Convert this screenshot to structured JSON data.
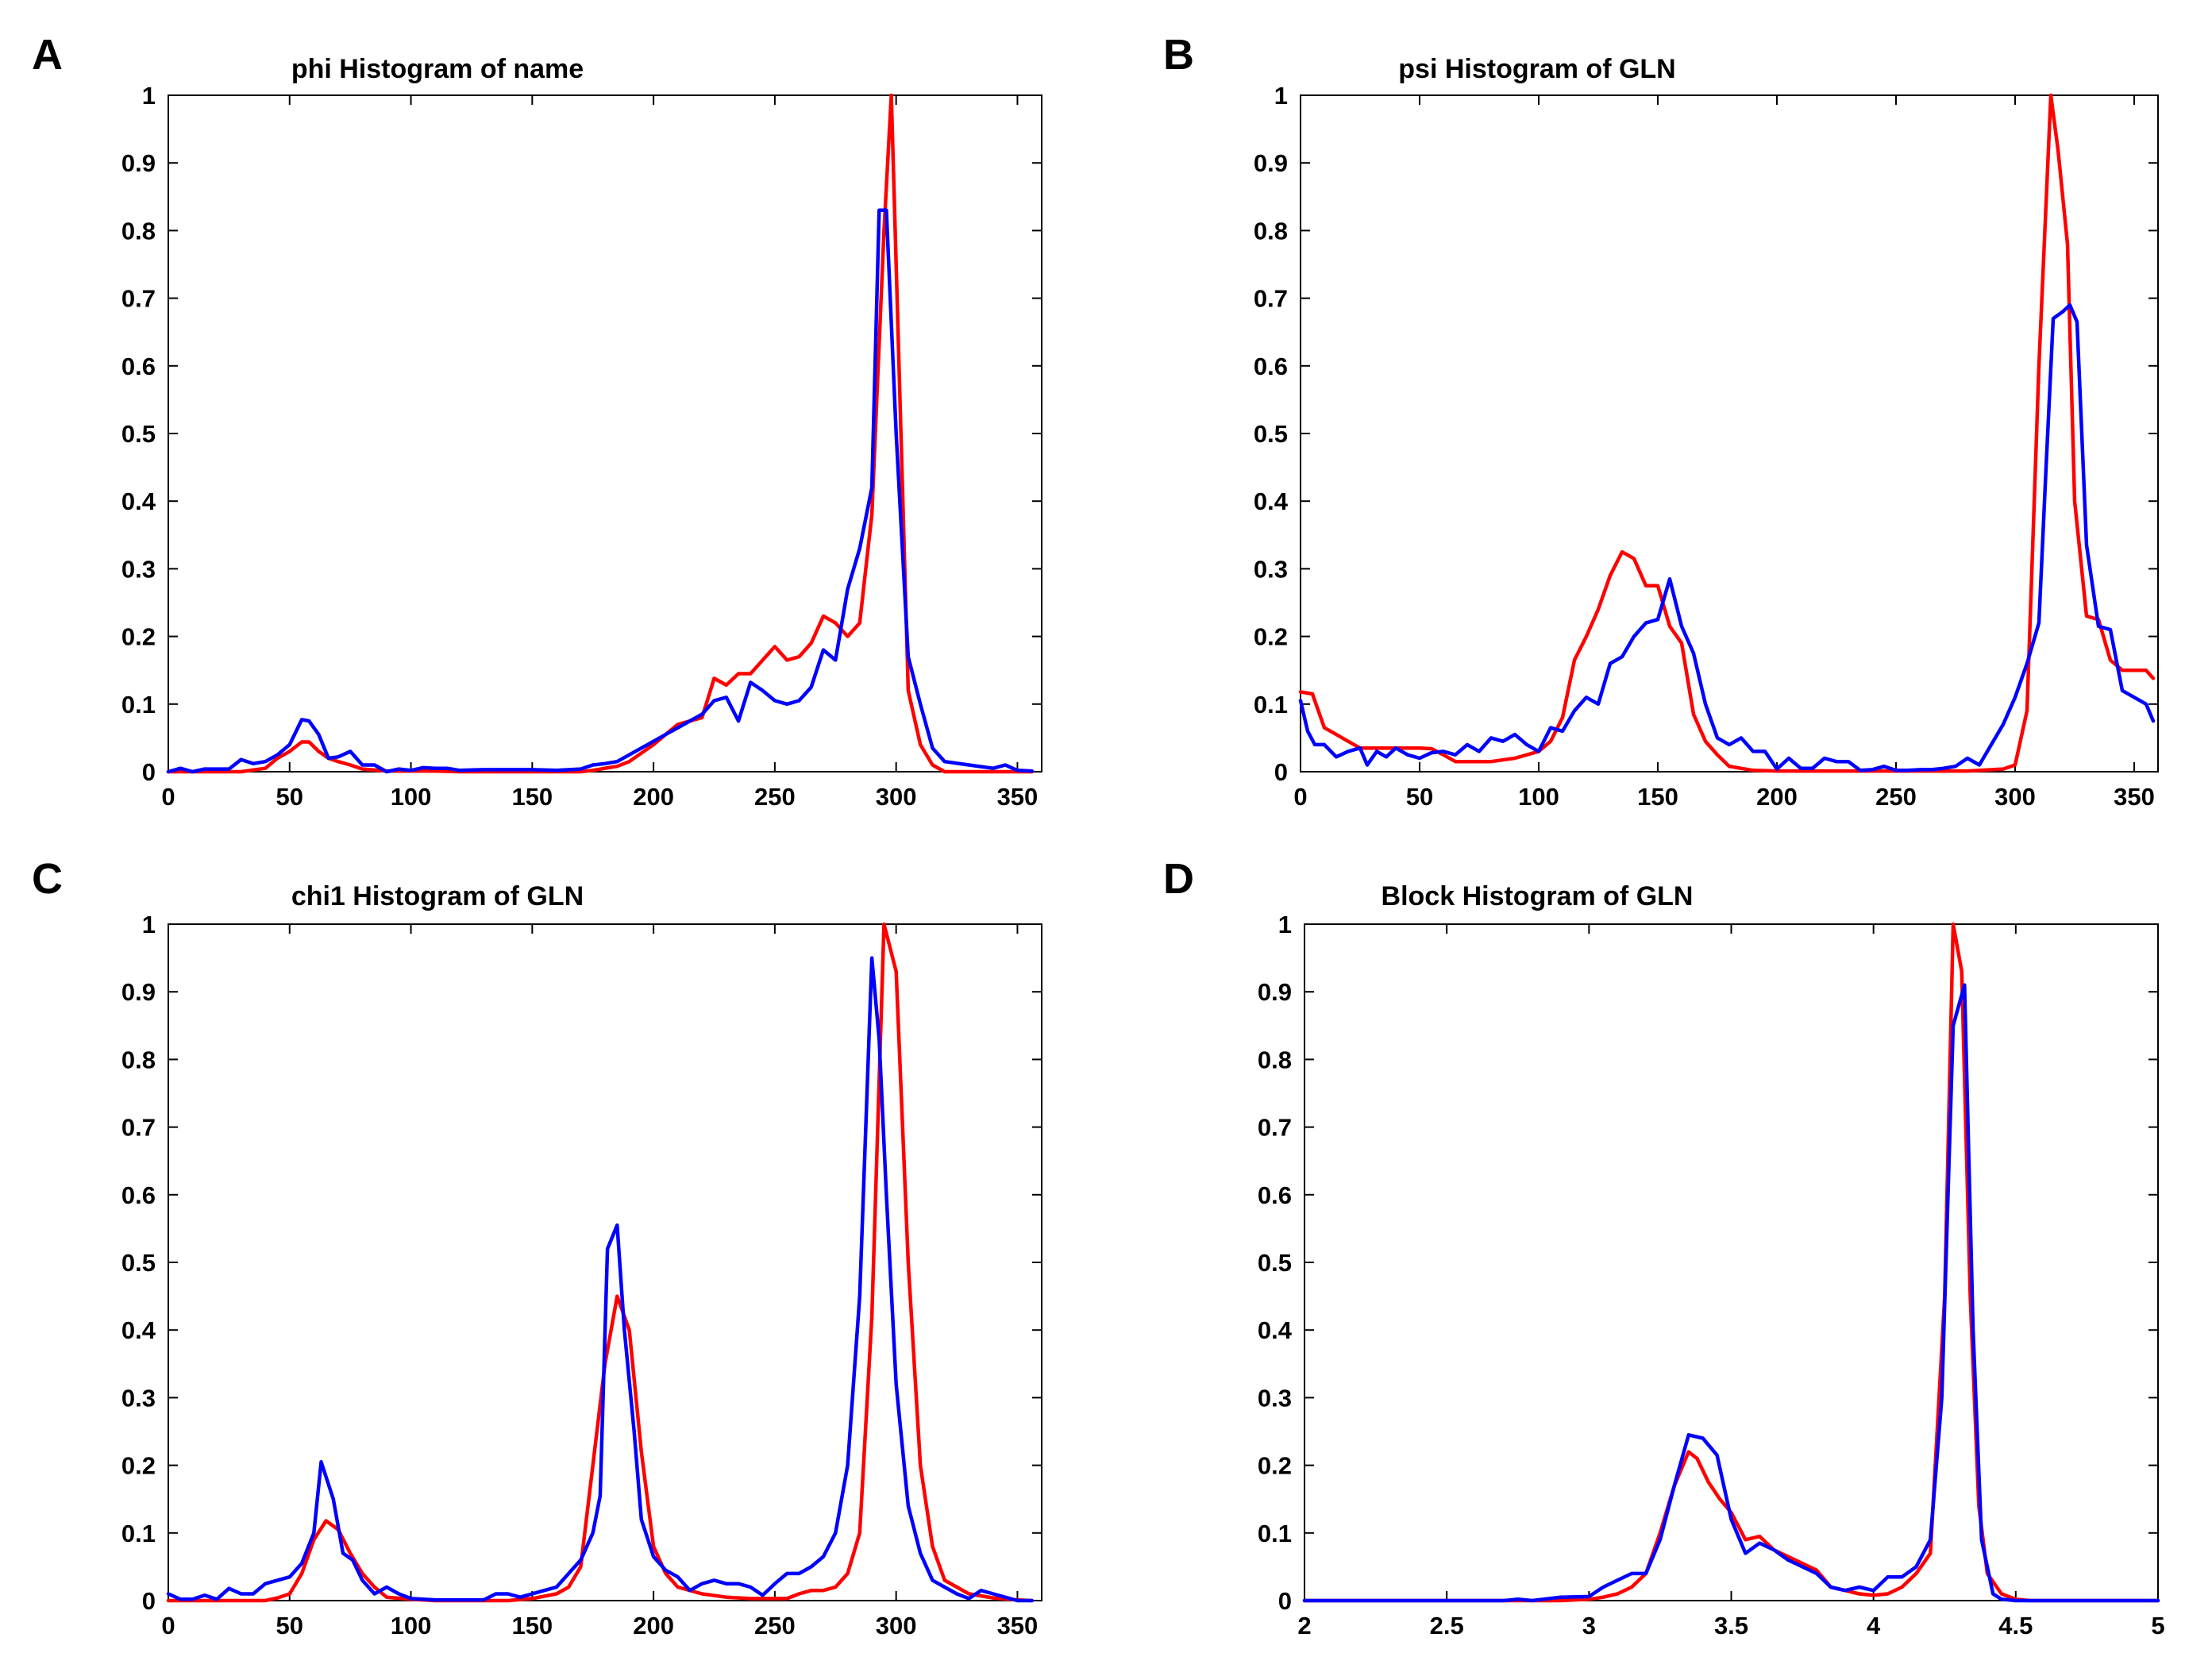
{
  "colors": {
    "series_red": "#ff0000",
    "series_blue": "#0000ff",
    "axis": "#000000"
  },
  "chart_data": [
    {
      "panel": "A",
      "type": "line",
      "title": "phi Histogram of name",
      "xlim": [
        0,
        360
      ],
      "ylim": [
        0,
        1
      ],
      "xticks": [
        0,
        50,
        100,
        150,
        200,
        250,
        300,
        350
      ],
      "yticks": [
        0,
        0.1,
        0.2,
        0.3,
        0.4,
        0.5,
        0.6,
        0.7,
        0.8,
        0.9,
        1
      ],
      "series": [
        {
          "name": "red",
          "color": "#ff0000",
          "x": [
            0,
            10,
            20,
            30,
            40,
            45,
            50,
            55,
            58,
            62,
            66,
            70,
            75,
            80,
            90,
            100,
            110,
            120,
            130,
            140,
            150,
            160,
            170,
            175,
            180,
            185,
            190,
            200,
            210,
            220,
            225,
            230,
            235,
            240,
            245,
            250,
            255,
            260,
            265,
            270,
            275,
            280,
            285,
            290,
            295,
            298,
            300,
            305,
            310,
            315,
            320,
            330,
            340,
            350,
            356
          ],
          "y": [
            0,
            0,
            0,
            0,
            0.005,
            0.02,
            0.03,
            0.044,
            0.044,
            0.03,
            0.02,
            0.015,
            0.01,
            0.004,
            0.001,
            0.001,
            0.001,
            0,
            0,
            0,
            0,
            0,
            0,
            0.002,
            0.005,
            0.008,
            0.015,
            0.04,
            0.07,
            0.08,
            0.138,
            0.128,
            0.145,
            0.145,
            0.165,
            0.185,
            0.165,
            0.17,
            0.19,
            0.23,
            0.22,
            0.2,
            0.22,
            0.38,
            0.8,
            1.0,
            0.75,
            0.12,
            0.04,
            0.01,
            0,
            0,
            0,
            0,
            0
          ]
        },
        {
          "name": "blue",
          "color": "#0000ff",
          "x": [
            0,
            5,
            10,
            15,
            20,
            25,
            30,
            35,
            40,
            45,
            50,
            55,
            58,
            62,
            66,
            70,
            75,
            80,
            85,
            90,
            95,
            100,
            105,
            110,
            115,
            120,
            130,
            140,
            150,
            160,
            170,
            175,
            180,
            185,
            190,
            195,
            200,
            205,
            210,
            215,
            220,
            225,
            230,
            235,
            240,
            245,
            250,
            255,
            260,
            265,
            270,
            275,
            280,
            285,
            290,
            293,
            296,
            300,
            305,
            310,
            315,
            320,
            330,
            340,
            345,
            350,
            356
          ],
          "y": [
            0,
            0.005,
            0,
            0.004,
            0.004,
            0.004,
            0.018,
            0.012,
            0.015,
            0.025,
            0.04,
            0.077,
            0.075,
            0.055,
            0.02,
            0.022,
            0.03,
            0.01,
            0.01,
            0,
            0.004,
            0.002,
            0.006,
            0.005,
            0.005,
            0.002,
            0.003,
            0.003,
            0.003,
            0.002,
            0.004,
            0.01,
            0.012,
            0.015,
            0.025,
            0.035,
            0.045,
            0.055,
            0.065,
            0.075,
            0.085,
            0.105,
            0.11,
            0.075,
            0.132,
            0.12,
            0.105,
            0.1,
            0.105,
            0.125,
            0.18,
            0.165,
            0.27,
            0.33,
            0.42,
            0.83,
            0.83,
            0.5,
            0.17,
            0.1,
            0.035,
            0.015,
            0.01,
            0.005,
            0.01,
            0.002,
            0.001
          ]
        }
      ]
    },
    {
      "panel": "B",
      "type": "line",
      "title": "psi Histogram of GLN",
      "xlim": [
        0,
        360
      ],
      "ylim": [
        0,
        1
      ],
      "xticks": [
        0,
        50,
        100,
        150,
        200,
        250,
        300,
        350
      ],
      "yticks": [
        0,
        0.1,
        0.2,
        0.3,
        0.4,
        0.5,
        0.6,
        0.7,
        0.8,
        0.9,
        1
      ],
      "series": [
        {
          "name": "red",
          "color": "#ff0000",
          "x": [
            0,
            5,
            10,
            15,
            20,
            25,
            30,
            40,
            50,
            55,
            60,
            65,
            70,
            80,
            90,
            100,
            105,
            110,
            115,
            120,
            125,
            130,
            135,
            140,
            145,
            150,
            155,
            160,
            165,
            170,
            175,
            180,
            190,
            200,
            220,
            240,
            260,
            280,
            295,
            300,
            305,
            310,
            315,
            318,
            322,
            325,
            330,
            335,
            340,
            345,
            350,
            355,
            358
          ],
          "y": [
            0.118,
            0.115,
            0.065,
            0.055,
            0.045,
            0.035,
            0.035,
            0.035,
            0.035,
            0.034,
            0.025,
            0.015,
            0.015,
            0.015,
            0.02,
            0.03,
            0.045,
            0.08,
            0.165,
            0.2,
            0.24,
            0.29,
            0.325,
            0.315,
            0.275,
            0.275,
            0.215,
            0.19,
            0.085,
            0.045,
            0.025,
            0.008,
            0.002,
            0.001,
            0.001,
            0.001,
            0.001,
            0.001,
            0.004,
            0.01,
            0.09,
            0.6,
            1.0,
            0.92,
            0.78,
            0.4,
            0.23,
            0.225,
            0.165,
            0.15,
            0.15,
            0.15,
            0.138
          ]
        },
        {
          "name": "blue",
          "color": "#0000ff",
          "x": [
            0,
            3,
            6,
            10,
            15,
            20,
            25,
            28,
            32,
            36,
            40,
            45,
            50,
            55,
            60,
            65,
            70,
            75,
            80,
            85,
            90,
            95,
            100,
            105,
            110,
            115,
            120,
            125,
            130,
            135,
            140,
            145,
            150,
            155,
            160,
            165,
            170,
            175,
            180,
            185,
            190,
            195,
            200,
            205,
            210,
            215,
            220,
            225,
            230,
            235,
            240,
            245,
            250,
            255,
            260,
            265,
            270,
            275,
            280,
            285,
            290,
            295,
            300,
            305,
            310,
            313,
            316,
            320,
            323,
            326,
            330,
            335,
            340,
            345,
            350,
            355,
            358
          ],
          "y": [
            0.105,
            0.06,
            0.04,
            0.04,
            0.022,
            0.03,
            0.035,
            0.01,
            0.03,
            0.022,
            0.035,
            0.025,
            0.02,
            0.028,
            0.03,
            0.025,
            0.04,
            0.03,
            0.05,
            0.045,
            0.055,
            0.04,
            0.03,
            0.065,
            0.06,
            0.09,
            0.11,
            0.1,
            0.16,
            0.17,
            0.2,
            0.22,
            0.225,
            0.285,
            0.215,
            0.175,
            0.1,
            0.05,
            0.04,
            0.05,
            0.03,
            0.03,
            0.004,
            0.02,
            0.005,
            0.005,
            0.02,
            0.015,
            0.015,
            0.002,
            0.003,
            0.008,
            0.002,
            0.002,
            0.003,
            0.003,
            0.005,
            0.008,
            0.02,
            0.01,
            0.04,
            0.07,
            0.11,
            0.16,
            0.22,
            0.45,
            0.67,
            0.68,
            0.69,
            0.665,
            0.335,
            0.215,
            0.21,
            0.12,
            0.11,
            0.1,
            0.075
          ]
        }
      ]
    },
    {
      "panel": "C",
      "type": "line",
      "title": "chi1 Histogram of GLN",
      "xlim": [
        0,
        360
      ],
      "ylim": [
        0,
        1
      ],
      "xticks": [
        0,
        50,
        100,
        150,
        200,
        250,
        300,
        350
      ],
      "yticks": [
        0,
        0.1,
        0.2,
        0.3,
        0.4,
        0.5,
        0.6,
        0.7,
        0.8,
        0.9,
        1
      ],
      "series": [
        {
          "name": "red",
          "color": "#ff0000",
          "x": [
            0,
            10,
            20,
            30,
            40,
            45,
            50,
            55,
            60,
            65,
            70,
            75,
            80,
            85,
            90,
            100,
            110,
            120,
            130,
            140,
            150,
            160,
            165,
            170,
            175,
            180,
            185,
            190,
            195,
            200,
            205,
            210,
            220,
            230,
            240,
            250,
            255,
            260,
            265,
            270,
            275,
            280,
            285,
            290,
            295,
            300,
            305,
            310,
            315,
            320,
            330,
            340,
            350,
            356
          ],
          "y": [
            0,
            0,
            0,
            0,
            0,
            0.004,
            0.01,
            0.04,
            0.09,
            0.118,
            0.105,
            0.07,
            0.04,
            0.02,
            0.005,
            0.002,
            0,
            0,
            0,
            0,
            0.003,
            0.01,
            0.02,
            0.05,
            0.2,
            0.35,
            0.45,
            0.4,
            0.22,
            0.08,
            0.04,
            0.02,
            0.01,
            0.005,
            0.003,
            0.003,
            0.003,
            0.01,
            0.015,
            0.015,
            0.02,
            0.04,
            0.1,
            0.42,
            1.0,
            0.93,
            0.5,
            0.2,
            0.08,
            0.03,
            0.01,
            0.004,
            0.001,
            0
          ]
        },
        {
          "name": "blue",
          "color": "#0000ff",
          "x": [
            0,
            5,
            10,
            15,
            20,
            25,
            30,
            35,
            40,
            45,
            50,
            55,
            60,
            63,
            68,
            72,
            76,
            80,
            85,
            90,
            95,
            100,
            110,
            120,
            130,
            135,
            140,
            145,
            150,
            155,
            160,
            165,
            170,
            175,
            178,
            181,
            185,
            188,
            192,
            195,
            200,
            205,
            210,
            215,
            220,
            225,
            230,
            235,
            240,
            245,
            250,
            255,
            260,
            265,
            270,
            275,
            280,
            285,
            290,
            293,
            296,
            300,
            305,
            310,
            315,
            320,
            325,
            330,
            335,
            340,
            350,
            356
          ],
          "y": [
            0.01,
            0.002,
            0.002,
            0.008,
            0.002,
            0.018,
            0.01,
            0.01,
            0.025,
            0.03,
            0.035,
            0.055,
            0.1,
            0.205,
            0.15,
            0.07,
            0.06,
            0.03,
            0.01,
            0.02,
            0.01,
            0.003,
            0.001,
            0.001,
            0.001,
            0.01,
            0.01,
            0.005,
            0.01,
            0.015,
            0.02,
            0.04,
            0.06,
            0.1,
            0.155,
            0.52,
            0.555,
            0.4,
            0.25,
            0.12,
            0.065,
            0.045,
            0.035,
            0.015,
            0.025,
            0.03,
            0.025,
            0.025,
            0.02,
            0.008,
            0.025,
            0.04,
            0.04,
            0.05,
            0.065,
            0.1,
            0.2,
            0.45,
            0.95,
            0.83,
            0.6,
            0.32,
            0.14,
            0.07,
            0.03,
            0.02,
            0.01,
            0.003,
            0.015,
            0.01,
            0,
            0
          ]
        }
      ]
    },
    {
      "panel": "D",
      "type": "line",
      "title": "Block Histogram of GLN",
      "xlim": [
        2,
        5
      ],
      "ylim": [
        0,
        1
      ],
      "xticks": [
        2,
        2.5,
        3,
        3.5,
        4,
        4.5,
        5
      ],
      "yticks": [
        0,
        0.1,
        0.2,
        0.3,
        0.4,
        0.5,
        0.6,
        0.7,
        0.8,
        0.9,
        1
      ],
      "series": [
        {
          "name": "red",
          "color": "#ff0000",
          "x": [
            2,
            2.5,
            2.8,
            2.9,
            3.0,
            3.05,
            3.1,
            3.15,
            3.2,
            3.25,
            3.3,
            3.35,
            3.38,
            3.42,
            3.46,
            3.5,
            3.55,
            3.6,
            3.65,
            3.7,
            3.8,
            3.85,
            3.9,
            3.95,
            4.0,
            4.05,
            4.1,
            4.15,
            4.2,
            4.25,
            4.28,
            4.31,
            4.34,
            4.37,
            4.4,
            4.45,
            4.5,
            4.55,
            4.6,
            5
          ],
          "y": [
            0,
            0,
            0,
            0,
            0.002,
            0.005,
            0.01,
            0.02,
            0.04,
            0.1,
            0.17,
            0.22,
            0.21,
            0.175,
            0.15,
            0.13,
            0.09,
            0.095,
            0.075,
            0.065,
            0.045,
            0.02,
            0.015,
            0.01,
            0.008,
            0.01,
            0.02,
            0.04,
            0.07,
            0.45,
            1.0,
            0.93,
            0.45,
            0.14,
            0.04,
            0.01,
            0.002,
            0,
            0,
            0
          ]
        },
        {
          "name": "blue",
          "color": "#0000ff",
          "x": [
            2,
            2.5,
            2.7,
            2.75,
            2.8,
            2.9,
            3.0,
            3.05,
            3.1,
            3.15,
            3.2,
            3.25,
            3.3,
            3.35,
            3.4,
            3.45,
            3.5,
            3.55,
            3.6,
            3.65,
            3.7,
            3.75,
            3.8,
            3.85,
            3.9,
            3.95,
            4.0,
            4.05,
            4.1,
            4.15,
            4.2,
            4.24,
            4.28,
            4.32,
            4.35,
            4.38,
            4.42,
            4.45,
            4.5,
            5
          ],
          "y": [
            0,
            0,
            0,
            0.002,
            0,
            0.005,
            0.006,
            0.02,
            0.03,
            0.04,
            0.04,
            0.09,
            0.17,
            0.245,
            0.24,
            0.215,
            0.12,
            0.07,
            0.085,
            0.075,
            0.06,
            0.05,
            0.04,
            0.02,
            0.015,
            0.02,
            0.015,
            0.035,
            0.035,
            0.05,
            0.09,
            0.3,
            0.85,
            0.91,
            0.4,
            0.09,
            0.01,
            0.002,
            0,
            0
          ]
        }
      ]
    }
  ]
}
